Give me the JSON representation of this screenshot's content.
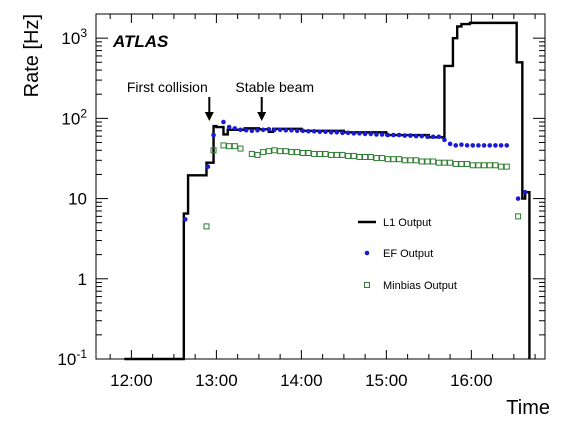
{
  "chart_data": {
    "type": "line",
    "brand_label": "ATLAS",
    "xlabel": "Time",
    "ylabel": "Rate [Hz]",
    "yscale": "log",
    "ylim": [
      0.1,
      2000
    ],
    "xlim": [
      "11:35",
      "16:52"
    ],
    "x_ticks": [
      "12:00",
      "13:00",
      "14:00",
      "15:00",
      "16:00"
    ],
    "y_ticks": [
      {
        "value": 0.1,
        "base": "10",
        "exp": "-1"
      },
      {
        "value": 1,
        "base": "1",
        "exp": ""
      },
      {
        "value": 10,
        "base": "10",
        "exp": ""
      },
      {
        "value": 100,
        "base": "10",
        "exp": "2"
      },
      {
        "value": 1000,
        "base": "10",
        "exp": "3"
      }
    ],
    "annotations": [
      {
        "text": "First collision",
        "x": "12:55"
      },
      {
        "text": "Stable beam",
        "x": "13:32"
      }
    ],
    "legend": {
      "position": "right",
      "entries": [
        {
          "label": "L1 Output",
          "style": "line",
          "color": "#000000"
        },
        {
          "label": "EF Output",
          "style": "dot",
          "color": "#1a1ad6"
        },
        {
          "label": "Minbias Output",
          "style": "square",
          "color": "#2e7d32"
        }
      ]
    },
    "series": [
      {
        "name": "L1 Output",
        "style": "step",
        "color": "#000000",
        "x": [
          "11:55",
          "12:37",
          "12:40",
          "12:45",
          "12:53",
          "12:58",
          "13:00",
          "13:05",
          "13:08",
          "13:13",
          "13:20",
          "13:30",
          "13:37",
          "13:40",
          "14:00",
          "14:30",
          "15:00",
          "15:30",
          "15:38",
          "15:41",
          "15:47",
          "15:50",
          "15:53",
          "15:59",
          "16:30",
          "16:32",
          "16:36",
          "16:38",
          "16:41"
        ],
        "y": [
          0.1,
          6.5,
          19.5,
          19.5,
          28,
          80,
          78,
          63,
          72,
          72,
          75,
          73,
          68,
          74,
          70,
          67,
          62,
          58,
          58,
          450,
          1000,
          1400,
          1500,
          1550,
          1550,
          500,
          10,
          12,
          0.1
        ]
      },
      {
        "name": "EF Output",
        "style": "dot",
        "color": "#1a1ad6",
        "x": [
          "12:38",
          "12:54",
          "12:58",
          "13:05",
          "13:09",
          "13:13",
          "13:17",
          "13:21",
          "13:25",
          "13:29",
          "13:33",
          "13:37",
          "13:41",
          "13:45",
          "13:49",
          "13:53",
          "13:57",
          "14:01",
          "14:05",
          "14:09",
          "14:13",
          "14:17",
          "14:21",
          "14:25",
          "14:29",
          "14:33",
          "14:37",
          "14:41",
          "14:45",
          "14:49",
          "14:53",
          "14:57",
          "15:01",
          "15:05",
          "15:09",
          "15:13",
          "15:17",
          "15:21",
          "15:25",
          "15:29",
          "15:33",
          "15:37",
          "15:41",
          "15:45",
          "15:49",
          "15:53",
          "15:57",
          "16:01",
          "16:05",
          "16:09",
          "16:13",
          "16:17",
          "16:21",
          "16:25",
          "16:33",
          "16:38"
        ],
        "y": [
          5.5,
          25,
          62,
          90,
          78,
          75,
          72,
          71,
          70,
          71,
          72,
          73,
          72,
          72,
          71,
          71,
          70,
          70,
          69,
          69,
          68,
          68,
          67,
          67,
          66,
          66,
          65,
          65,
          64,
          64,
          63,
          63,
          62,
          62,
          62,
          61,
          61,
          60,
          60,
          59,
          59,
          59,
          54,
          48,
          46,
          47,
          46,
          46,
          46,
          46,
          46,
          46,
          46,
          46,
          10,
          12
        ]
      },
      {
        "name": "Minbias Output",
        "style": "square",
        "color": "#2e7d32",
        "x": [
          "12:53",
          "12:58",
          "13:05",
          "13:09",
          "13:13",
          "13:17",
          "13:25",
          "13:29",
          "13:33",
          "13:37",
          "13:41",
          "13:45",
          "13:49",
          "13:53",
          "13:57",
          "14:01",
          "14:05",
          "14:09",
          "14:13",
          "14:17",
          "14:21",
          "14:25",
          "14:29",
          "14:33",
          "14:37",
          "14:41",
          "14:45",
          "14:49",
          "14:53",
          "14:57",
          "15:01",
          "15:05",
          "15:09",
          "15:13",
          "15:17",
          "15:21",
          "15:25",
          "15:29",
          "15:33",
          "15:37",
          "15:41",
          "15:45",
          "15:49",
          "15:53",
          "15:57",
          "16:01",
          "16:05",
          "16:09",
          "16:13",
          "16:17",
          "16:21",
          "16:25",
          "16:33"
        ],
        "y": [
          4.5,
          40,
          46,
          45,
          45,
          42,
          36,
          35,
          38,
          39,
          40,
          39,
          39,
          38,
          38,
          37,
          37,
          36,
          36,
          36,
          35,
          35,
          35,
          34,
          34,
          33,
          33,
          33,
          32,
          32,
          31,
          31,
          31,
          30,
          30,
          30,
          29,
          29,
          29,
          28,
          28,
          28,
          27,
          27,
          27,
          26,
          26,
          26,
          26,
          26,
          25,
          25,
          6
        ]
      }
    ]
  }
}
